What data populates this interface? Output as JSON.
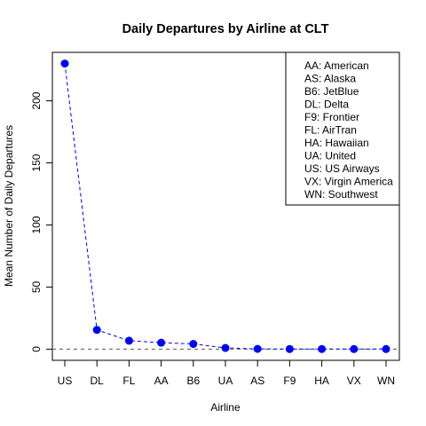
{
  "chart_data": {
    "type": "line",
    "title": "Daily Departures by Airline at CLT",
    "xlabel": "Airline",
    "ylabel": "Mean Number of Daily Departures",
    "categories": [
      "US",
      "DL",
      "FL",
      "AA",
      "B6",
      "UA",
      "AS",
      "F9",
      "HA",
      "VX",
      "WN"
    ],
    "series": [
      {
        "values": [
          230,
          15.5,
          6.8,
          5.2,
          4.2,
          1.0,
          0.2,
          0.1,
          0.1,
          0.1,
          0.1
        ]
      }
    ],
    "yticks": [
      0,
      50,
      100,
      150,
      200
    ],
    "ylim": [
      -9,
      239
    ],
    "reference_line": 0,
    "grid": false,
    "legend": {
      "position": "top-right",
      "entries": [
        "AA: American",
        "AS: Alaska",
        "B6: JetBlue",
        "DL: Delta",
        "F9: Frontier",
        "FL: AirTran",
        "HA: Hawaiian",
        "UA: United",
        "US: US Airways",
        "VX: Virgin America",
        "WN: Southwest"
      ]
    },
    "colors": {
      "series": "#0000ff",
      "reference_line": "#555555",
      "axis": "#000000"
    }
  }
}
